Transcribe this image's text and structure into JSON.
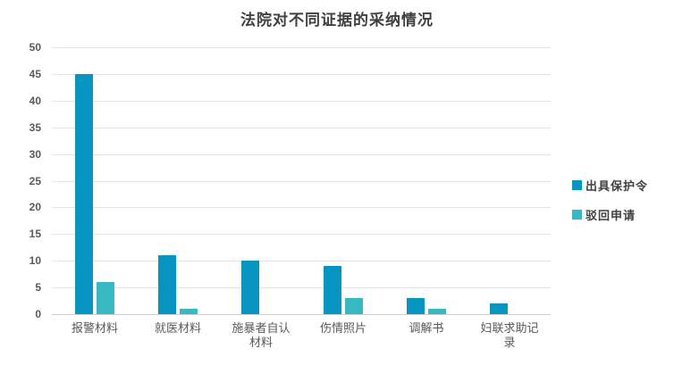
{
  "chart_data": {
    "type": "bar",
    "title": "法院对不同证据的采纳情况",
    "categories": [
      "报警材料",
      "就医材料",
      "施暴者自认\n材料",
      "伤情照片",
      "调解书",
      "妇联求助记\n录"
    ],
    "series": [
      {
        "name": "出具保护令",
        "color": "#0894c1",
        "values": [
          45,
          11,
          10,
          9,
          3,
          2
        ]
      },
      {
        "name": "驳回申请",
        "color": "#38b8c1",
        "values": [
          6,
          1,
          0,
          3,
          1,
          0
        ]
      }
    ],
    "xlabel": "",
    "ylabel": "",
    "ylim": [
      0,
      50
    ],
    "yticks": [
      0,
      5,
      10,
      15,
      20,
      25,
      30,
      35,
      40,
      45,
      50
    ],
    "grid": true,
    "legend_position": "right",
    "colors": {
      "gridline": "#e4e4e4",
      "axis_line": "#cfcfcf",
      "tick_text": "#595959",
      "title_text": "#404040"
    }
  }
}
